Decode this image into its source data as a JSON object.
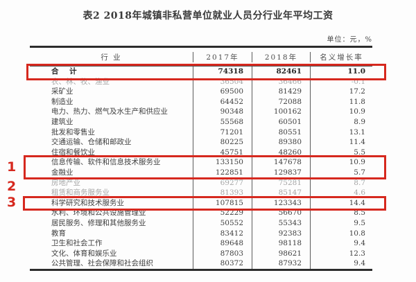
{
  "page": {
    "title": "表2 2018年城镇非私营单位就业人员分行业年平均工资",
    "unit_label": "单位：元，%"
  },
  "table": {
    "columns": [
      "行  业",
      "2017年",
      "2018年",
      "名义增长率"
    ],
    "rows": [
      {
        "industry": "合  计",
        "y2017": "74318",
        "y2018": "82461",
        "growth": "11.0",
        "style": "total"
      },
      {
        "industry": "农、林、牧、渔业",
        "y2017": "36504",
        "y2018": "36466",
        "growth": "-0.1",
        "style": "faded"
      },
      {
        "industry": "采矿业",
        "y2017": "69500",
        "y2018": "81429",
        "growth": "17.2",
        "style": "normal"
      },
      {
        "industry": "制造业",
        "y2017": "64452",
        "y2018": "72088",
        "growth": "11.8",
        "style": "normal"
      },
      {
        "industry": "电力、热力、燃气及水生产和供应业",
        "y2017": "90348",
        "y2018": "100162",
        "growth": "10.9",
        "style": "normal"
      },
      {
        "industry": "建筑业",
        "y2017": "55568",
        "y2018": "60501",
        "growth": "8.9",
        "style": "normal"
      },
      {
        "industry": "批发和零售业",
        "y2017": "71201",
        "y2018": "80551",
        "growth": "13.1",
        "style": "normal"
      },
      {
        "industry": "交通运输、仓储和邮政业",
        "y2017": "80225",
        "y2018": "89380",
        "growth": "11.4",
        "style": "normal"
      },
      {
        "industry": "住宿和餐饮业",
        "y2017": "45751",
        "y2018": "48260",
        "growth": "5.5",
        "style": "normal"
      },
      {
        "industry": "信息传输、软件和信息技术服务业",
        "y2017": "133150",
        "y2018": "147678",
        "growth": "10.9",
        "style": "normal"
      },
      {
        "industry": "金融业",
        "y2017": "122851",
        "y2018": "129837",
        "growth": "5.7",
        "style": "normal"
      },
      {
        "industry": "房地产业",
        "y2017": "69277",
        "y2018": "75281",
        "growth": "8.7",
        "style": "faded"
      },
      {
        "industry": "租赁和商务服务业",
        "y2017": "81393",
        "y2018": "85147",
        "growth": "4.6",
        "style": "faded"
      },
      {
        "industry": "科学研究和技术服务业",
        "y2017": "107815",
        "y2018": "123343",
        "growth": "14.4",
        "style": "normal"
      },
      {
        "industry": "水利、环境和公共设施管理业",
        "y2017": "52229",
        "y2018": "56670",
        "growth": "8.5",
        "style": "normal"
      },
      {
        "industry": "居民服务、修理和其他服务业",
        "y2017": "50552",
        "y2018": "55343",
        "growth": "9.5",
        "style": "normal"
      },
      {
        "industry": "教育",
        "y2017": "83412",
        "y2018": "92383",
        "growth": "10.8",
        "style": "normal"
      },
      {
        "industry": "卫生和社会工作",
        "y2017": "89648",
        "y2018": "98118",
        "growth": "9.4",
        "style": "normal"
      },
      {
        "industry": "文化、体育和娱乐业",
        "y2017": "87803",
        "y2018": "98621",
        "growth": "12.3",
        "style": "normal"
      },
      {
        "industry": "公共管理、社会保障和社会组织",
        "y2017": "80372",
        "y2018": "87932",
        "growth": "9.4",
        "style": "normal"
      }
    ]
  },
  "annotations": {
    "highlight_color": "#d6281e",
    "markers": [
      "1",
      "2",
      "3"
    ]
  },
  "chart_data": {
    "type": "table",
    "title": "表2 2018年城镇非私营单位就业人员分行业年平均工资",
    "unit": "元，%",
    "columns": [
      "行业",
      "2017年",
      "2018年",
      "名义增长率"
    ],
    "categories": [
      "合计",
      "农、林、牧、渔业",
      "采矿业",
      "制造业",
      "电力、热力、燃气及水生产和供应业",
      "建筑业",
      "批发和零售业",
      "交通运输、仓储和邮政业",
      "住宿和餐饮业",
      "信息传输、软件和信息技术服务业",
      "金融业",
      "房地产业",
      "租赁和商务服务业",
      "科学研究和技术服务业",
      "水利、环境和公共设施管理业",
      "居民服务、修理和其他服务业",
      "教育",
      "卫生和社会工作",
      "文化、体育和娱乐业",
      "公共管理、社会保障和社会组织"
    ],
    "series": [
      {
        "name": "2017年",
        "values": [
          74318,
          36504,
          69500,
          64452,
          90348,
          55568,
          71201,
          80225,
          45751,
          133150,
          122851,
          69277,
          81393,
          107815,
          52229,
          50552,
          83412,
          89648,
          87803,
          80372
        ]
      },
      {
        "name": "2018年",
        "values": [
          82461,
          36466,
          81429,
          72088,
          100162,
          60501,
          80551,
          89380,
          48260,
          147678,
          129837,
          75281,
          85147,
          123343,
          56670,
          55343,
          92383,
          98118,
          98621,
          87932
        ]
      },
      {
        "name": "名义增长率",
        "values": [
          11.0,
          -0.1,
          17.2,
          11.8,
          10.9,
          8.9,
          13.1,
          11.4,
          5.5,
          10.9,
          5.7,
          8.7,
          4.6,
          14.4,
          8.5,
          9.5,
          10.8,
          9.4,
          12.3,
          9.4
        ]
      }
    ],
    "highlighted_rows": [
      "合计",
      "信息传输、软件和信息技术服务业",
      "金融业",
      "科学研究和技术服务业"
    ]
  }
}
